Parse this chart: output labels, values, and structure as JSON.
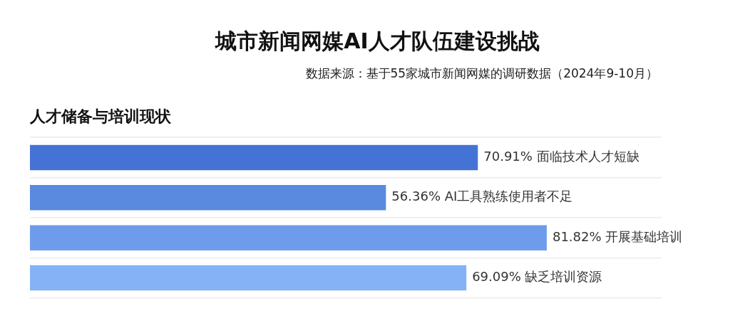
{
  "chart_data": {
    "type": "bar",
    "orientation": "horizontal",
    "title": "城市新闻网媒AI人才队伍建设挑战",
    "subtitle": "人才储备与培训现状",
    "annotations": [
      "数据来源：基于55家城市新闻网媒的调研数据（2024年9-10月）"
    ],
    "categories": [
      null,
      null,
      null,
      null
    ],
    "values": [
      70.91,
      56.36,
      81.82,
      69.09
    ],
    "colors": [
      "#4573d5",
      "#5a89e0",
      "#6f9cea",
      "#85b2f6"
    ],
    "value_labels": [
      "70.91% 面临技术人才短缺",
      "56.36% AI工具熟练使用者不足",
      "81.82% 开展基础培训",
      "69.09% 缺乏培训资源"
    ],
    "xlim": [
      0,
      100
    ],
    "grid": "y",
    "legend": false
  }
}
